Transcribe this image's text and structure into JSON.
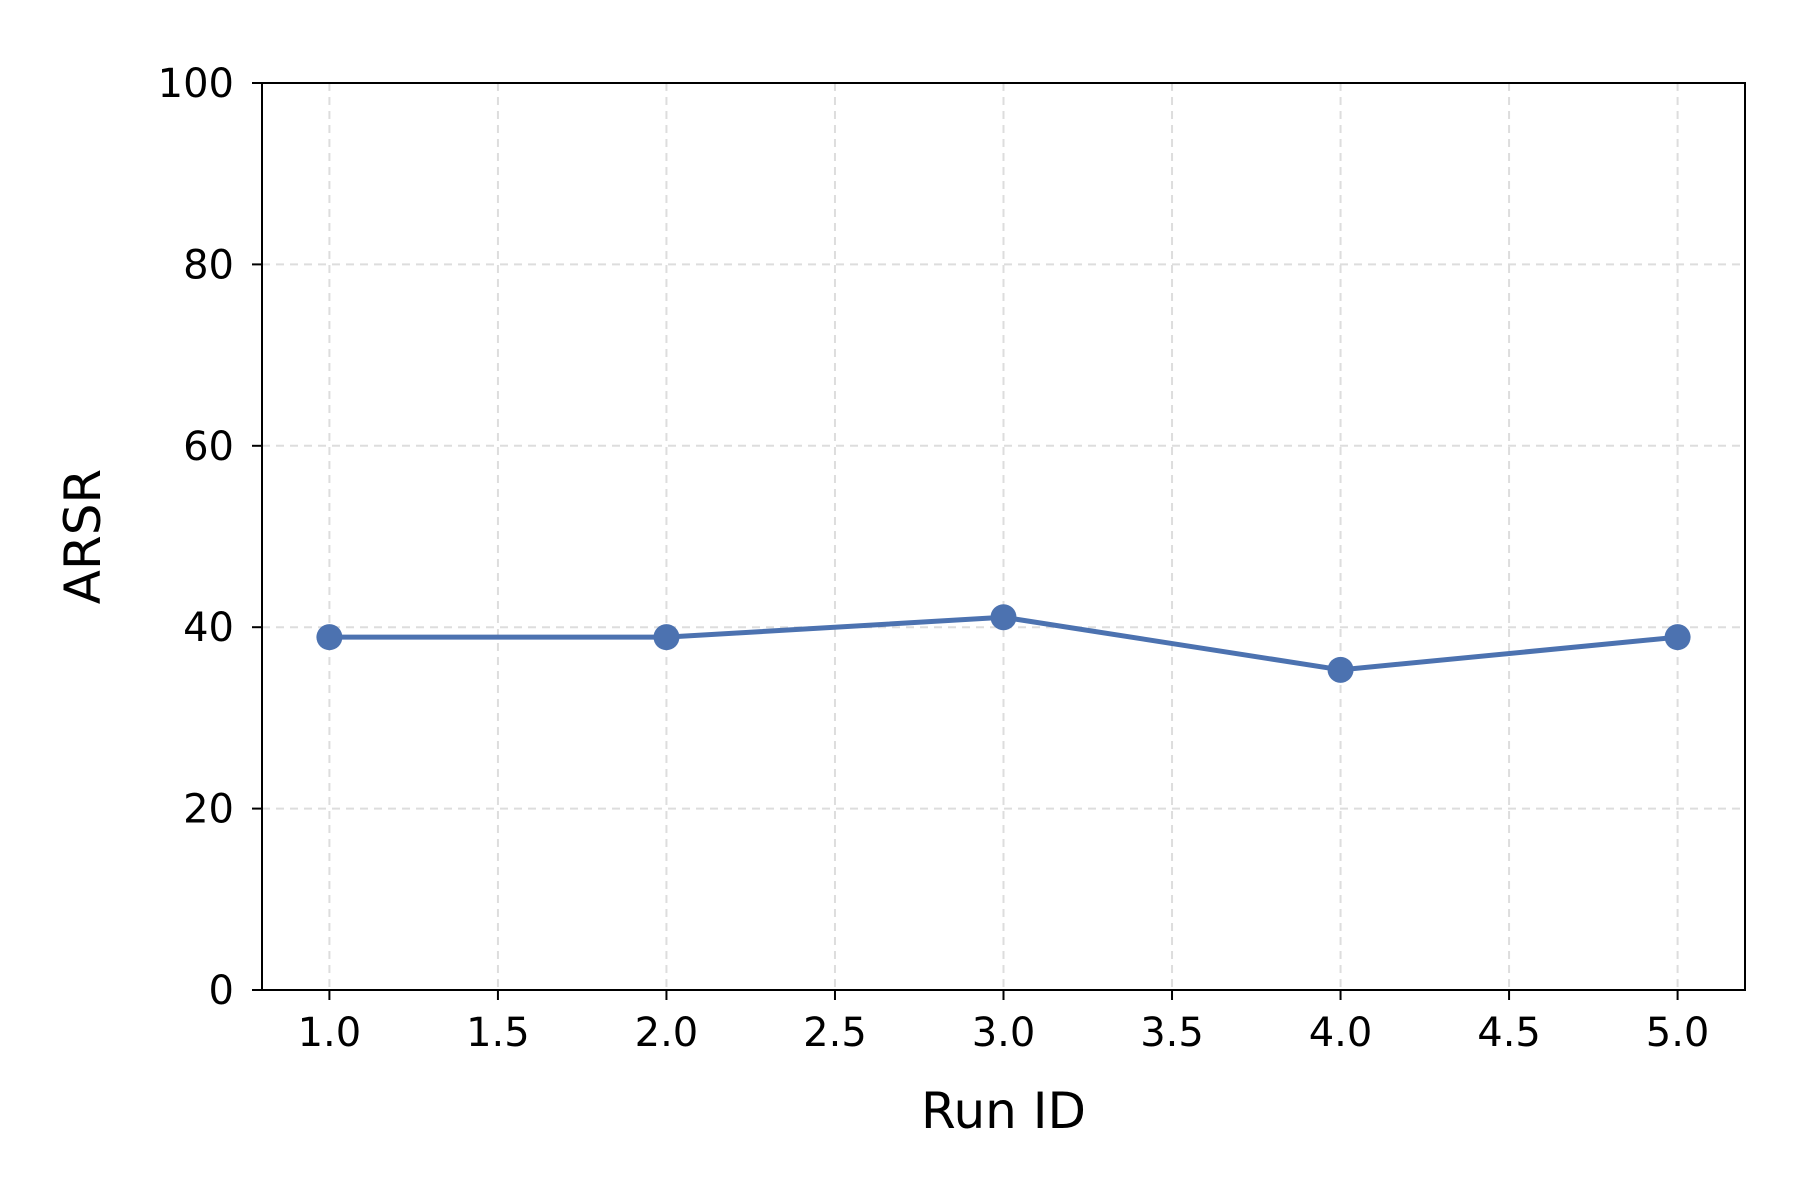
{
  "chart_data": {
    "type": "line",
    "title": "",
    "xlabel": "Run ID",
    "ylabel": "ARSR",
    "xlim": [
      0.8,
      5.2
    ],
    "ylim": [
      0,
      100
    ],
    "xticks": [
      1.0,
      1.5,
      2.0,
      2.5,
      3.0,
      3.5,
      4.0,
      4.5,
      5.0
    ],
    "xtick_labels": [
      "1.0",
      "1.5",
      "2.0",
      "2.5",
      "3.0",
      "3.5",
      "4.0",
      "4.5",
      "5.0"
    ],
    "yticks": [
      0,
      20,
      40,
      60,
      80,
      100
    ],
    "ytick_labels": [
      "0",
      "20",
      "40",
      "60",
      "80",
      "100"
    ],
    "grid": true,
    "legend": "none",
    "series": [
      {
        "color": "#4c72b0",
        "marker": "circle",
        "x": [
          1,
          2,
          3,
          4,
          5
        ],
        "y": [
          38.9,
          38.9,
          41.1,
          35.3,
          38.9
        ]
      }
    ]
  }
}
